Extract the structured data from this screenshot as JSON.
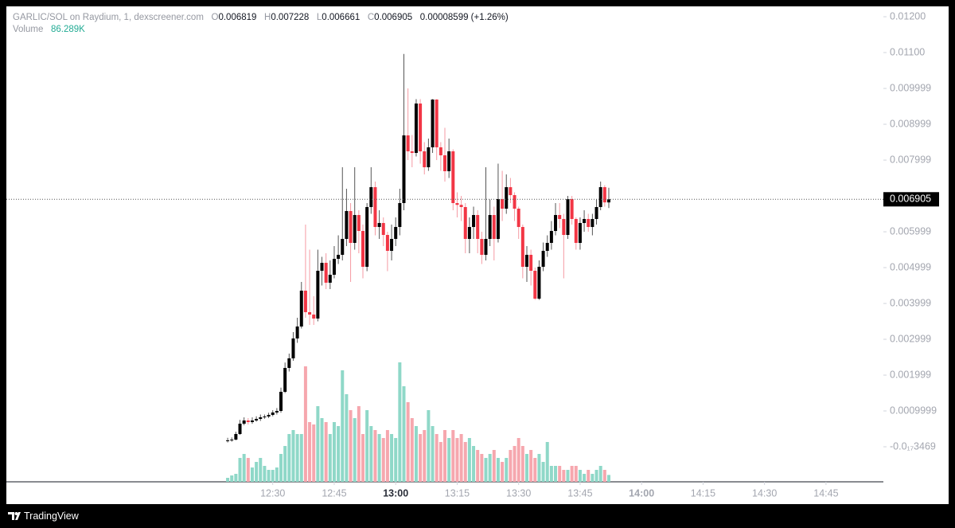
{
  "header": {
    "title": "GARLIC/SOL on Raydium, 1, dexscreener.com",
    "o": "O",
    "h": "H",
    "l": "L",
    "c": "C",
    "change": "0.00008599 (+1.26%)",
    "volume_label": "Volume",
    "volume_value": "86.289K"
  },
  "footer": {
    "brand": "TradingView"
  },
  "chart_data": {
    "type": "candlestick",
    "x": [
      "12:19",
      "12:20",
      "12:21",
      "12:22",
      "12:23",
      "12:24",
      "12:25",
      "12:26",
      "12:27",
      "12:28",
      "12:29",
      "12:30",
      "12:31",
      "12:32",
      "12:33",
      "12:34",
      "12:35",
      "12:36",
      "12:37",
      "12:38",
      "12:39",
      "12:40",
      "12:41",
      "12:42",
      "12:43",
      "12:44",
      "12:45",
      "12:46",
      "12:47",
      "12:48",
      "12:49",
      "12:50",
      "12:51",
      "12:52",
      "12:53",
      "12:54",
      "12:55",
      "12:56",
      "12:57",
      "12:58",
      "12:59",
      "13:00",
      "13:01",
      "13:02",
      "13:03",
      "13:04",
      "13:05",
      "13:06",
      "13:07",
      "13:08",
      "13:09",
      "13:10",
      "13:11",
      "13:12",
      "13:13",
      "13:14",
      "13:15",
      "13:16",
      "13:17",
      "13:18",
      "13:19",
      "13:20",
      "13:21",
      "13:22",
      "13:23",
      "13:24",
      "13:25",
      "13:26",
      "13:27",
      "13:28",
      "13:29",
      "13:30",
      "13:31",
      "13:32",
      "13:33",
      "13:34",
      "13:35",
      "13:36",
      "13:37",
      "13:38",
      "13:39",
      "13:40",
      "13:41",
      "13:42",
      "13:43",
      "13:44",
      "13:45",
      "13:46",
      "13:47",
      "13:48",
      "13:49",
      "13:50",
      "13:51",
      "13:52"
    ],
    "open": [
      0.000178,
      0.000178,
      0.0002,
      0.000356,
      0.000644,
      0.000733,
      0.000689,
      0.000733,
      0.000778,
      0.000822,
      0.000844,
      0.000889,
      0.000956,
      0.001,
      0.001533,
      0.0022,
      0.002467,
      0.003022,
      0.003356,
      0.004356,
      0.003756,
      0.003689,
      0.003578,
      0.004911,
      0.005133,
      0.004578,
      0.0048,
      0.005244,
      0.005356,
      0.0058,
      0.006578,
      0.005689,
      0.006467,
      0.006022,
      0.005022,
      0.006689,
      0.007244,
      0.006133,
      0.006244,
      0.005911,
      0.005467,
      0.0058,
      0.006133,
      0.0068,
      0.008689,
      0.008244,
      0.0082,
      0.009578,
      0.008244,
      0.0078,
      0.008356,
      0.009689,
      0.008356,
      0.008133,
      0.007689,
      0.008244,
      0.0068,
      0.00675,
      0.006689,
      0.0058,
      0.006133,
      0.006467,
      0.0058,
      0.005356,
      0.0058,
      0.006467,
      0.0058,
      0.006911,
      0.006644,
      0.007244,
      0.007022,
      0.006644,
      0.006133,
      0.005022,
      0.005356,
      0.004911,
      0.004133,
      0.005022,
      0.005467,
      0.005689,
      0.006022,
      0.006467,
      0.006356,
      0.005911,
      0.006911,
      0.006356,
      0.005689,
      0.006244,
      0.006356,
      0.006133,
      0.006356,
      0.006689,
      0.007244,
      0.006819
    ],
    "high": [
      0.00025,
      0.00026,
      0.00042,
      0.00075,
      0.00082,
      0.0008,
      0.00082,
      0.00085,
      0.0009,
      0.0009,
      0.00095,
      0.00102,
      0.00108,
      0.00165,
      0.00235,
      0.0026,
      0.0032,
      0.0036,
      0.0046,
      0.0062,
      0.0055,
      0.0042,
      0.0055,
      0.0053,
      0.0054,
      0.0052,
      0.0056,
      0.0059,
      0.0078,
      0.0072,
      0.0068,
      0.0078,
      0.0066,
      0.0062,
      0.0068,
      0.0078,
      0.0074,
      0.0066,
      0.0064,
      0.006,
      0.0062,
      0.0064,
      0.0072,
      0.01096,
      0.01,
      0.0087,
      0.0097,
      0.0097,
      0.0085,
      0.0086,
      0.0097,
      0.0097,
      0.0085,
      0.0089,
      0.0086,
      0.0083,
      0.0071,
      0.007,
      0.0068,
      0.0064,
      0.0067,
      0.0066,
      0.006,
      0.0078,
      0.0069,
      0.0067,
      0.0079,
      0.0077,
      0.0076,
      0.0075,
      0.0071,
      0.0067,
      0.0062,
      0.0056,
      0.0055,
      0.005,
      0.0052,
      0.0057,
      0.0059,
      0.0063,
      0.0068,
      0.0068,
      0.0065,
      0.007,
      0.007,
      0.0064,
      0.0064,
      0.0066,
      0.0065,
      0.0065,
      0.0069,
      0.0074,
      0.0073,
      0.007228
    ],
    "low": [
      0.00012,
      0.00014,
      0.00018,
      0.00033,
      0.0006,
      0.00062,
      0.00064,
      0.0007,
      0.00072,
      0.00078,
      0.0008,
      0.00085,
      0.0009,
      0.00095,
      0.0015,
      0.0021,
      0.0024,
      0.0029,
      0.0033,
      0.0036,
      0.0034,
      0.0034,
      0.0035,
      0.0045,
      0.0044,
      0.0044,
      0.0047,
      0.0051,
      0.0052,
      0.0056,
      0.0046,
      0.0055,
      0.0054,
      0.0047,
      0.0049,
      0.0065,
      0.0059,
      0.0058,
      0.0056,
      0.0049,
      0.0052,
      0.0056,
      0.0059,
      0.0066,
      0.008,
      0.0078,
      0.0081,
      0.0079,
      0.0076,
      0.0077,
      0.0082,
      0.008,
      0.0077,
      0.0074,
      0.0075,
      0.0066,
      0.0064,
      0.0063,
      0.0054,
      0.0054,
      0.0058,
      0.0054,
      0.0051,
      0.0052,
      0.0056,
      0.0052,
      0.0057,
      0.0063,
      0.0065,
      0.0068,
      0.0063,
      0.0058,
      0.0047,
      0.0046,
      0.0045,
      0.0041,
      0.0041,
      0.0049,
      0.0053,
      0.0055,
      0.0059,
      0.0061,
      0.0047,
      0.0058,
      0.0062,
      0.0055,
      0.0055,
      0.006,
      0.006,
      0.0059,
      0.0062,
      0.0066,
      0.0067,
      0.006661
    ],
    "close": [
      0.000178,
      0.0002,
      0.000356,
      0.000644,
      0.000733,
      0.000689,
      0.000733,
      0.000778,
      0.000822,
      0.000844,
      0.000889,
      0.000956,
      0.001,
      0.001533,
      0.0022,
      0.002467,
      0.003022,
      0.003356,
      0.004356,
      0.003756,
      0.003689,
      0.003578,
      0.004911,
      0.005133,
      0.004578,
      0.0048,
      0.005244,
      0.005356,
      0.0058,
      0.006578,
      0.005689,
      0.006467,
      0.006022,
      0.005022,
      0.006689,
      0.007244,
      0.006133,
      0.006244,
      0.005911,
      0.005467,
      0.0058,
      0.006133,
      0.0068,
      0.008689,
      0.008244,
      0.0082,
      0.009578,
      0.008244,
      0.0078,
      0.008356,
      0.009689,
      0.008356,
      0.008133,
      0.007689,
      0.008244,
      0.0068,
      0.00675,
      0.006689,
      0.0058,
      0.006133,
      0.006467,
      0.0058,
      0.005356,
      0.0058,
      0.006467,
      0.0058,
      0.006911,
      0.006644,
      0.007244,
      0.007022,
      0.006644,
      0.006133,
      0.005022,
      0.005356,
      0.004911,
      0.004133,
      0.005022,
      0.005467,
      0.005689,
      0.006022,
      0.006467,
      0.006356,
      0.005911,
      0.006911,
      0.006356,
      0.005689,
      0.006244,
      0.006356,
      0.006133,
      0.006356,
      0.006689,
      0.007244,
      0.006819,
      0.006905
    ],
    "volume": [
      50000,
      80000,
      100000,
      300000,
      350000,
      300000,
      180000,
      250000,
      300000,
      200000,
      150000,
      150000,
      180000,
      350000,
      450000,
      600000,
      650000,
      600000,
      600000,
      1450000,
      750000,
      720000,
      950000,
      800000,
      750000,
      600000,
      750000,
      700000,
      1400000,
      1100000,
      900000,
      800000,
      950000,
      600000,
      900000,
      700000,
      650000,
      600000,
      550000,
      650000,
      600000,
      550000,
      1500000,
      1200000,
      1000000,
      800000,
      700000,
      600000,
      650000,
      900000,
      700000,
      600000,
      500000,
      650000,
      550000,
      650000,
      550000,
      600000,
      500000,
      550000,
      450000,
      400000,
      350000,
      300000,
      350000,
      400000,
      300000,
      250000,
      300000,
      400000,
      450000,
      550000,
      450000,
      350000,
      400000,
      300000,
      350000,
      250000,
      500000,
      200000,
      200000,
      200000,
      150000,
      150000,
      200000,
      200000,
      150000,
      100000,
      150000,
      100000,
      150000,
      200000,
      150000,
      86289
    ],
    "up_color": "#000000",
    "down_color": "#f23645",
    "up_volume_color": "#8fd8c8",
    "down_volume_color": "#f6a7ae",
    "xlim": [
      "11:25",
      "14:59"
    ],
    "xticks": [
      "12:30",
      "12:45",
      "13:00",
      "13:15",
      "13:30",
      "13:45",
      "14:00",
      "14:15",
      "14:30",
      "14:45"
    ],
    "ylim": [
      -0.000978,
      0.012289
    ],
    "yticks": [
      {
        "value": 0.012,
        "label": "0.01200"
      },
      {
        "value": 0.011,
        "label": "0.01100"
      },
      0.009999,
      0.008999,
      0.007999,
      0.005999,
      0.004999,
      0.003999,
      0.002999,
      0.001999,
      0.0009999,
      {
        "value": -3.469e-18,
        "label": "-0.0₁₇3469"
      }
    ],
    "volume_lim": [
      0,
      2900000
    ]
  }
}
